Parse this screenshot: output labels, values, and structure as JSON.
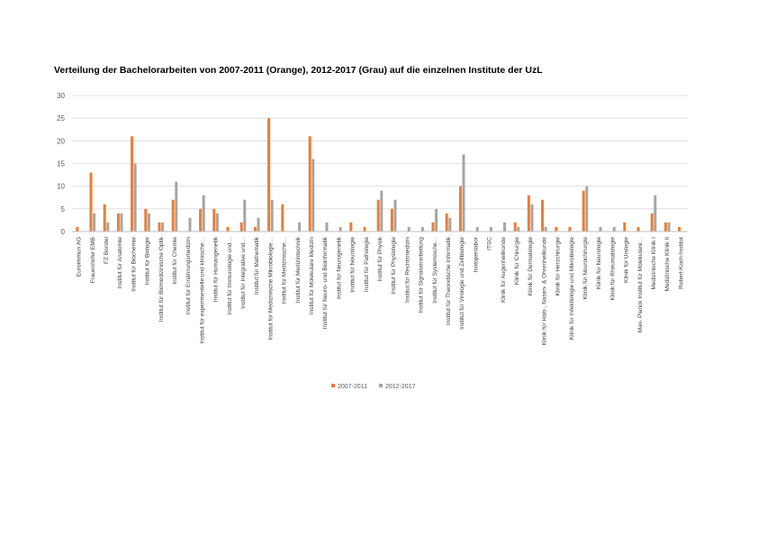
{
  "chart_data": {
    "type": "bar",
    "title": "Verteilung der Bachelorarbeiten von 2007-2011 (Orange), 2012-2017 (Grau) auf die einzelnen Institute der UzL",
    "xlabel": "",
    "ylabel": "",
    "ylim": [
      0,
      30
    ],
    "yticks": [
      "0",
      "5",
      "10",
      "15",
      "20",
      "25",
      "30"
    ],
    "grid": true,
    "legend_position": "bottom",
    "categories": [
      "Euroimmun AG",
      "Frauenhofer EMB",
      "FZ Borstel",
      "Institut für Anatomie",
      "Institut für Biochemie",
      "Institut für Biologie",
      "Institut für Biomedizinische Optik",
      "Institut für Chemie",
      "Institut für Ernährungsmedizin",
      "Institut für experimentelle und klinische…",
      "Institut für Humangenetik",
      "Institut für Immunologie und…",
      "Institut für Integrative und…",
      "Institut für Mathematik",
      "Institut für Medizinische Mikrobiologie…",
      "Institut für Medizinische…",
      "Institut für Medizintechnik",
      "Institut für Molekulare Medizin",
      "Institut für Neuro- und Bioinformatik",
      "Institut für Neurogenetik",
      "Institut für Neurologie",
      "Institut für Pathologie",
      "Institut für Physik",
      "Institut für Physiologie",
      "Institut für Rechtsmedizin",
      "Institut für Signalverarbeitung",
      "Institut für Systemische…",
      "Institut für Theoretische Informatik",
      "Institut für Virologie und Zellbiologie",
      "Isotopenlabor",
      "ITSC",
      "Klinik für Augenheilkunde",
      "Klinik für Chirurgie",
      "Klinik für Dermatologie",
      "Klinik für Hals-, Nasen- & Ohrenheilkunde",
      "Klinik für Herzchirurgie",
      "Klinik für Infektiologie und Mikrobiologie",
      "Klinik für Neurochirurgie",
      "Klinik für Neurologie",
      "Klinik für Rheumatologie",
      "Klinik für Urologie",
      "Max- Planck Institut für Molekulare…",
      "Medizinische Klinik I",
      "Medizinische Klinik II",
      "Robert-Koch-Institut"
    ],
    "series": [
      {
        "name": "2007-2011",
        "color": "#ED7D31",
        "values": [
          1,
          13,
          6,
          4,
          21,
          5,
          2,
          7,
          0,
          5,
          5,
          1,
          2,
          1,
          25,
          6,
          0,
          21,
          0,
          0,
          2,
          1,
          7,
          5,
          0,
          0,
          2,
          4,
          10,
          0,
          0,
          0,
          2,
          8,
          7,
          1,
          1,
          9,
          0,
          0,
          2,
          1,
          4,
          2,
          1
        ]
      },
      {
        "name": "2012-2017",
        "color": "#A5A5A5",
        "values": [
          0,
          4,
          2,
          4,
          15,
          4,
          2,
          11,
          3,
          8,
          4,
          0,
          7,
          3,
          7,
          0,
          2,
          16,
          2,
          1,
          0,
          0,
          9,
          7,
          1,
          1,
          5,
          3,
          17,
          1,
          1,
          2,
          1,
          6,
          1,
          0,
          0,
          10,
          1,
          1,
          0,
          0,
          8,
          2,
          0
        ]
      }
    ]
  }
}
